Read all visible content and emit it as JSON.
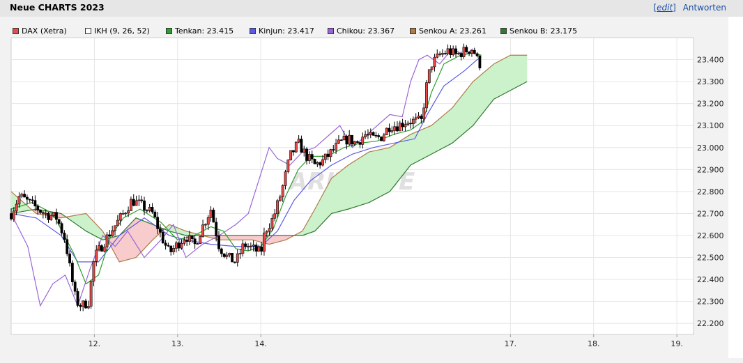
{
  "header": {
    "title": "Neue CHARTS 2023",
    "edit_label": "edit",
    "reply_label": "Antworten"
  },
  "watermark": "ARIVA.DE",
  "legend": [
    {
      "label": "DAX (Xetra)",
      "color": "#e84a4a"
    },
    {
      "label": "IKH (9, 26, 52)",
      "color": "#ffffff"
    },
    {
      "label": "Tenkan: 23.415",
      "color": "#2e9e2e"
    },
    {
      "label": "Kinjun: 23.417",
      "color": "#5a5ae6"
    },
    {
      "label": "Chikou: 23.367",
      "color": "#9966d6"
    },
    {
      "label": "Senkou A: 23.261",
      "color": "#b07a4a"
    },
    {
      "label": "Senkou B: 23.175",
      "color": "#2e7a2e"
    }
  ],
  "colors": {
    "tenkan": "#2e9e2e",
    "kijun": "#5a5ae6",
    "chikou": "#9966d6",
    "senkouA": "#b07a4a",
    "senkouB": "#2e7a2e",
    "cloud_bull": "#ccf2cc",
    "cloud_bear": "#f8cccc",
    "candle_up": "#e84a4a",
    "candle_down": "#000000"
  },
  "chart_data": {
    "type": "candlestick",
    "ylim": [
      22.15,
      23.5
    ],
    "yticks": [
      "22.200",
      "22.300",
      "22.400",
      "22.500",
      "22.600",
      "22.700",
      "22.800",
      "22.900",
      "23.000",
      "23.100",
      "23.200",
      "23.300",
      "23.400"
    ],
    "xlim": [
      11.0,
      19.2
    ],
    "xticks": [
      "12.",
      "13.",
      "14.",
      "17.",
      "18.",
      "19."
    ],
    "close_anchors": [
      [
        11.0,
        22.7
      ],
      [
        11.1,
        22.78
      ],
      [
        11.25,
        22.74
      ],
      [
        11.4,
        22.7
      ],
      [
        11.55,
        22.68
      ],
      [
        11.65,
        22.58
      ],
      [
        11.72,
        22.42
      ],
      [
        11.78,
        22.3
      ],
      [
        11.85,
        22.28
      ],
      [
        11.93,
        22.3
      ],
      [
        12.0,
        22.5
      ],
      [
        12.1,
        22.56
      ],
      [
        12.2,
        22.62
      ],
      [
        12.35,
        22.7
      ],
      [
        12.45,
        22.76
      ],
      [
        12.55,
        22.74
      ],
      [
        12.7,
        22.7
      ],
      [
        12.8,
        22.6
      ],
      [
        12.9,
        22.52
      ],
      [
        13.0,
        22.56
      ],
      [
        13.1,
        22.6
      ],
      [
        13.2,
        22.55
      ],
      [
        13.3,
        22.64
      ],
      [
        13.4,
        22.72
      ],
      [
        13.5,
        22.55
      ],
      [
        13.6,
        22.5
      ],
      [
        13.7,
        22.48
      ],
      [
        13.8,
        22.56
      ],
      [
        13.9,
        22.54
      ],
      [
        14.0,
        22.52
      ],
      [
        14.05,
        22.62
      ],
      [
        14.15,
        22.68
      ],
      [
        14.25,
        22.8
      ],
      [
        14.35,
        22.96
      ],
      [
        14.45,
        23.02
      ],
      [
        14.55,
        22.96
      ],
      [
        14.65,
        22.92
      ],
      [
        14.75,
        22.94
      ],
      [
        14.85,
        22.98
      ],
      [
        14.95,
        23.02
      ],
      [
        15.05,
        23.04
      ],
      [
        15.15,
        23.02
      ],
      [
        15.25,
        23.06
      ],
      [
        15.35,
        23.04
      ],
      [
        15.45,
        23.05
      ],
      [
        15.55,
        23.1
      ],
      [
        15.65,
        23.1
      ],
      [
        15.75,
        23.12
      ],
      [
        15.85,
        23.12
      ],
      [
        15.93,
        23.12
      ],
      [
        16.0,
        23.3
      ],
      [
        16.05,
        23.38
      ],
      [
        16.15,
        23.42
      ],
      [
        16.25,
        23.44
      ],
      [
        16.35,
        23.42
      ],
      [
        16.45,
        23.44
      ],
      [
        16.55,
        23.45
      ],
      [
        16.6,
        23.4
      ],
      [
        16.65,
        23.37
      ]
    ],
    "tenkan": [
      [
        11.0,
        22.72
      ],
      [
        11.25,
        22.75
      ],
      [
        11.5,
        22.7
      ],
      [
        11.75,
        22.52
      ],
      [
        11.9,
        22.38
      ],
      [
        12.05,
        22.42
      ],
      [
        12.2,
        22.6
      ],
      [
        12.35,
        22.68
      ],
      [
        12.55,
        22.72
      ],
      [
        12.8,
        22.66
      ],
      [
        13.0,
        22.58
      ],
      [
        13.2,
        22.6
      ],
      [
        13.4,
        22.64
      ],
      [
        13.55,
        22.62
      ],
      [
        13.7,
        22.54
      ],
      [
        13.85,
        22.53
      ],
      [
        14.0,
        22.55
      ],
      [
        14.15,
        22.63
      ],
      [
        14.3,
        22.78
      ],
      [
        14.45,
        22.9
      ],
      [
        14.6,
        22.96
      ],
      [
        14.8,
        22.96
      ],
      [
        15.0,
        23.0
      ],
      [
        15.2,
        23.02
      ],
      [
        15.4,
        23.03
      ],
      [
        15.6,
        23.06
      ],
      [
        15.8,
        23.08
      ],
      [
        15.95,
        23.12
      ],
      [
        16.05,
        23.25
      ],
      [
        16.2,
        23.38
      ],
      [
        16.4,
        23.42
      ],
      [
        16.55,
        23.43
      ],
      [
        16.65,
        23.42
      ]
    ],
    "kijun": [
      [
        11.0,
        22.7
      ],
      [
        11.3,
        22.68
      ],
      [
        11.6,
        22.6
      ],
      [
        11.8,
        22.48
      ],
      [
        12.05,
        22.48
      ],
      [
        12.3,
        22.6
      ],
      [
        12.6,
        22.68
      ],
      [
        12.9,
        22.6
      ],
      [
        13.1,
        22.58
      ],
      [
        13.4,
        22.56
      ],
      [
        13.7,
        22.55
      ],
      [
        14.0,
        22.55
      ],
      [
        14.2,
        22.62
      ],
      [
        14.4,
        22.76
      ],
      [
        14.6,
        22.85
      ],
      [
        14.85,
        22.92
      ],
      [
        15.1,
        22.97
      ],
      [
        15.35,
        23.0
      ],
      [
        15.6,
        23.02
      ],
      [
        15.85,
        23.04
      ],
      [
        16.0,
        23.15
      ],
      [
        16.2,
        23.28
      ],
      [
        16.45,
        23.35
      ],
      [
        16.6,
        23.4
      ],
      [
        16.65,
        23.41
      ]
    ],
    "chikou": [
      [
        11.0,
        22.7
      ],
      [
        11.2,
        22.55
      ],
      [
        11.35,
        22.28
      ],
      [
        11.5,
        22.38
      ],
      [
        11.65,
        22.42
      ],
      [
        11.8,
        22.28
      ],
      [
        11.95,
        22.45
      ],
      [
        12.1,
        22.6
      ],
      [
        12.25,
        22.55
      ],
      [
        12.4,
        22.62
      ],
      [
        12.6,
        22.5
      ],
      [
        12.8,
        22.58
      ],
      [
        12.95,
        22.65
      ],
      [
        13.1,
        22.5
      ],
      [
        13.3,
        22.56
      ],
      [
        13.5,
        22.6
      ],
      [
        13.7,
        22.65
      ],
      [
        13.85,
        22.7
      ],
      [
        14.0,
        22.88
      ],
      [
        14.1,
        23.0
      ],
      [
        14.2,
        22.95
      ],
      [
        14.35,
        22.92
      ],
      [
        14.5,
        22.98
      ],
      [
        14.65,
        23.0
      ],
      [
        14.8,
        23.05
      ],
      [
        14.95,
        23.1
      ],
      [
        15.1,
        23.0
      ],
      [
        15.25,
        23.05
      ],
      [
        15.4,
        23.1
      ],
      [
        15.55,
        23.15
      ],
      [
        15.7,
        23.14
      ],
      [
        15.8,
        23.3
      ],
      [
        15.9,
        23.4
      ],
      [
        16.0,
        23.42
      ],
      [
        16.15,
        23.38
      ],
      [
        16.3,
        23.45
      ],
      [
        16.45,
        23.42
      ],
      [
        16.55,
        23.45
      ]
    ],
    "senkouA": [
      [
        11.0,
        22.8
      ],
      [
        11.3,
        22.7
      ],
      [
        11.6,
        22.68
      ],
      [
        11.9,
        22.7
      ],
      [
        12.1,
        22.62
      ],
      [
        12.3,
        22.48
      ],
      [
        12.5,
        22.5
      ],
      [
        12.7,
        22.58
      ],
      [
        12.9,
        22.65
      ],
      [
        13.1,
        22.62
      ],
      [
        13.3,
        22.6
      ],
      [
        13.5,
        22.58
      ],
      [
        13.7,
        22.58
      ],
      [
        13.9,
        22.58
      ],
      [
        14.1,
        22.56
      ],
      [
        14.3,
        22.58
      ],
      [
        14.5,
        22.62
      ],
      [
        14.65,
        22.72
      ],
      [
        14.85,
        22.86
      ],
      [
        15.05,
        22.92
      ],
      [
        15.3,
        22.98
      ],
      [
        15.55,
        23.0
      ],
      [
        15.8,
        23.06
      ],
      [
        16.05,
        23.1
      ],
      [
        16.3,
        23.18
      ],
      [
        16.55,
        23.3
      ],
      [
        16.8,
        23.38
      ],
      [
        17.0,
        23.42
      ],
      [
        17.2,
        23.42
      ]
    ],
    "senkouB": [
      [
        11.0,
        22.7
      ],
      [
        11.3,
        22.72
      ],
      [
        11.6,
        22.7
      ],
      [
        11.9,
        22.62
      ],
      [
        12.1,
        22.58
      ],
      [
        12.3,
        22.6
      ],
      [
        12.5,
        22.68
      ],
      [
        12.7,
        22.65
      ],
      [
        12.9,
        22.62
      ],
      [
        13.1,
        22.6
      ],
      [
        13.3,
        22.6
      ],
      [
        13.5,
        22.6
      ],
      [
        13.7,
        22.6
      ],
      [
        13.9,
        22.6
      ],
      [
        14.1,
        22.6
      ],
      [
        14.3,
        22.6
      ],
      [
        14.5,
        22.6
      ],
      [
        14.65,
        22.62
      ],
      [
        14.85,
        22.7
      ],
      [
        15.05,
        22.72
      ],
      [
        15.3,
        22.75
      ],
      [
        15.55,
        22.8
      ],
      [
        15.8,
        22.92
      ],
      [
        16.05,
        22.97
      ],
      [
        16.3,
        23.02
      ],
      [
        16.55,
        23.1
      ],
      [
        16.8,
        23.22
      ],
      [
        17.0,
        23.26
      ],
      [
        17.2,
        23.3
      ]
    ]
  }
}
